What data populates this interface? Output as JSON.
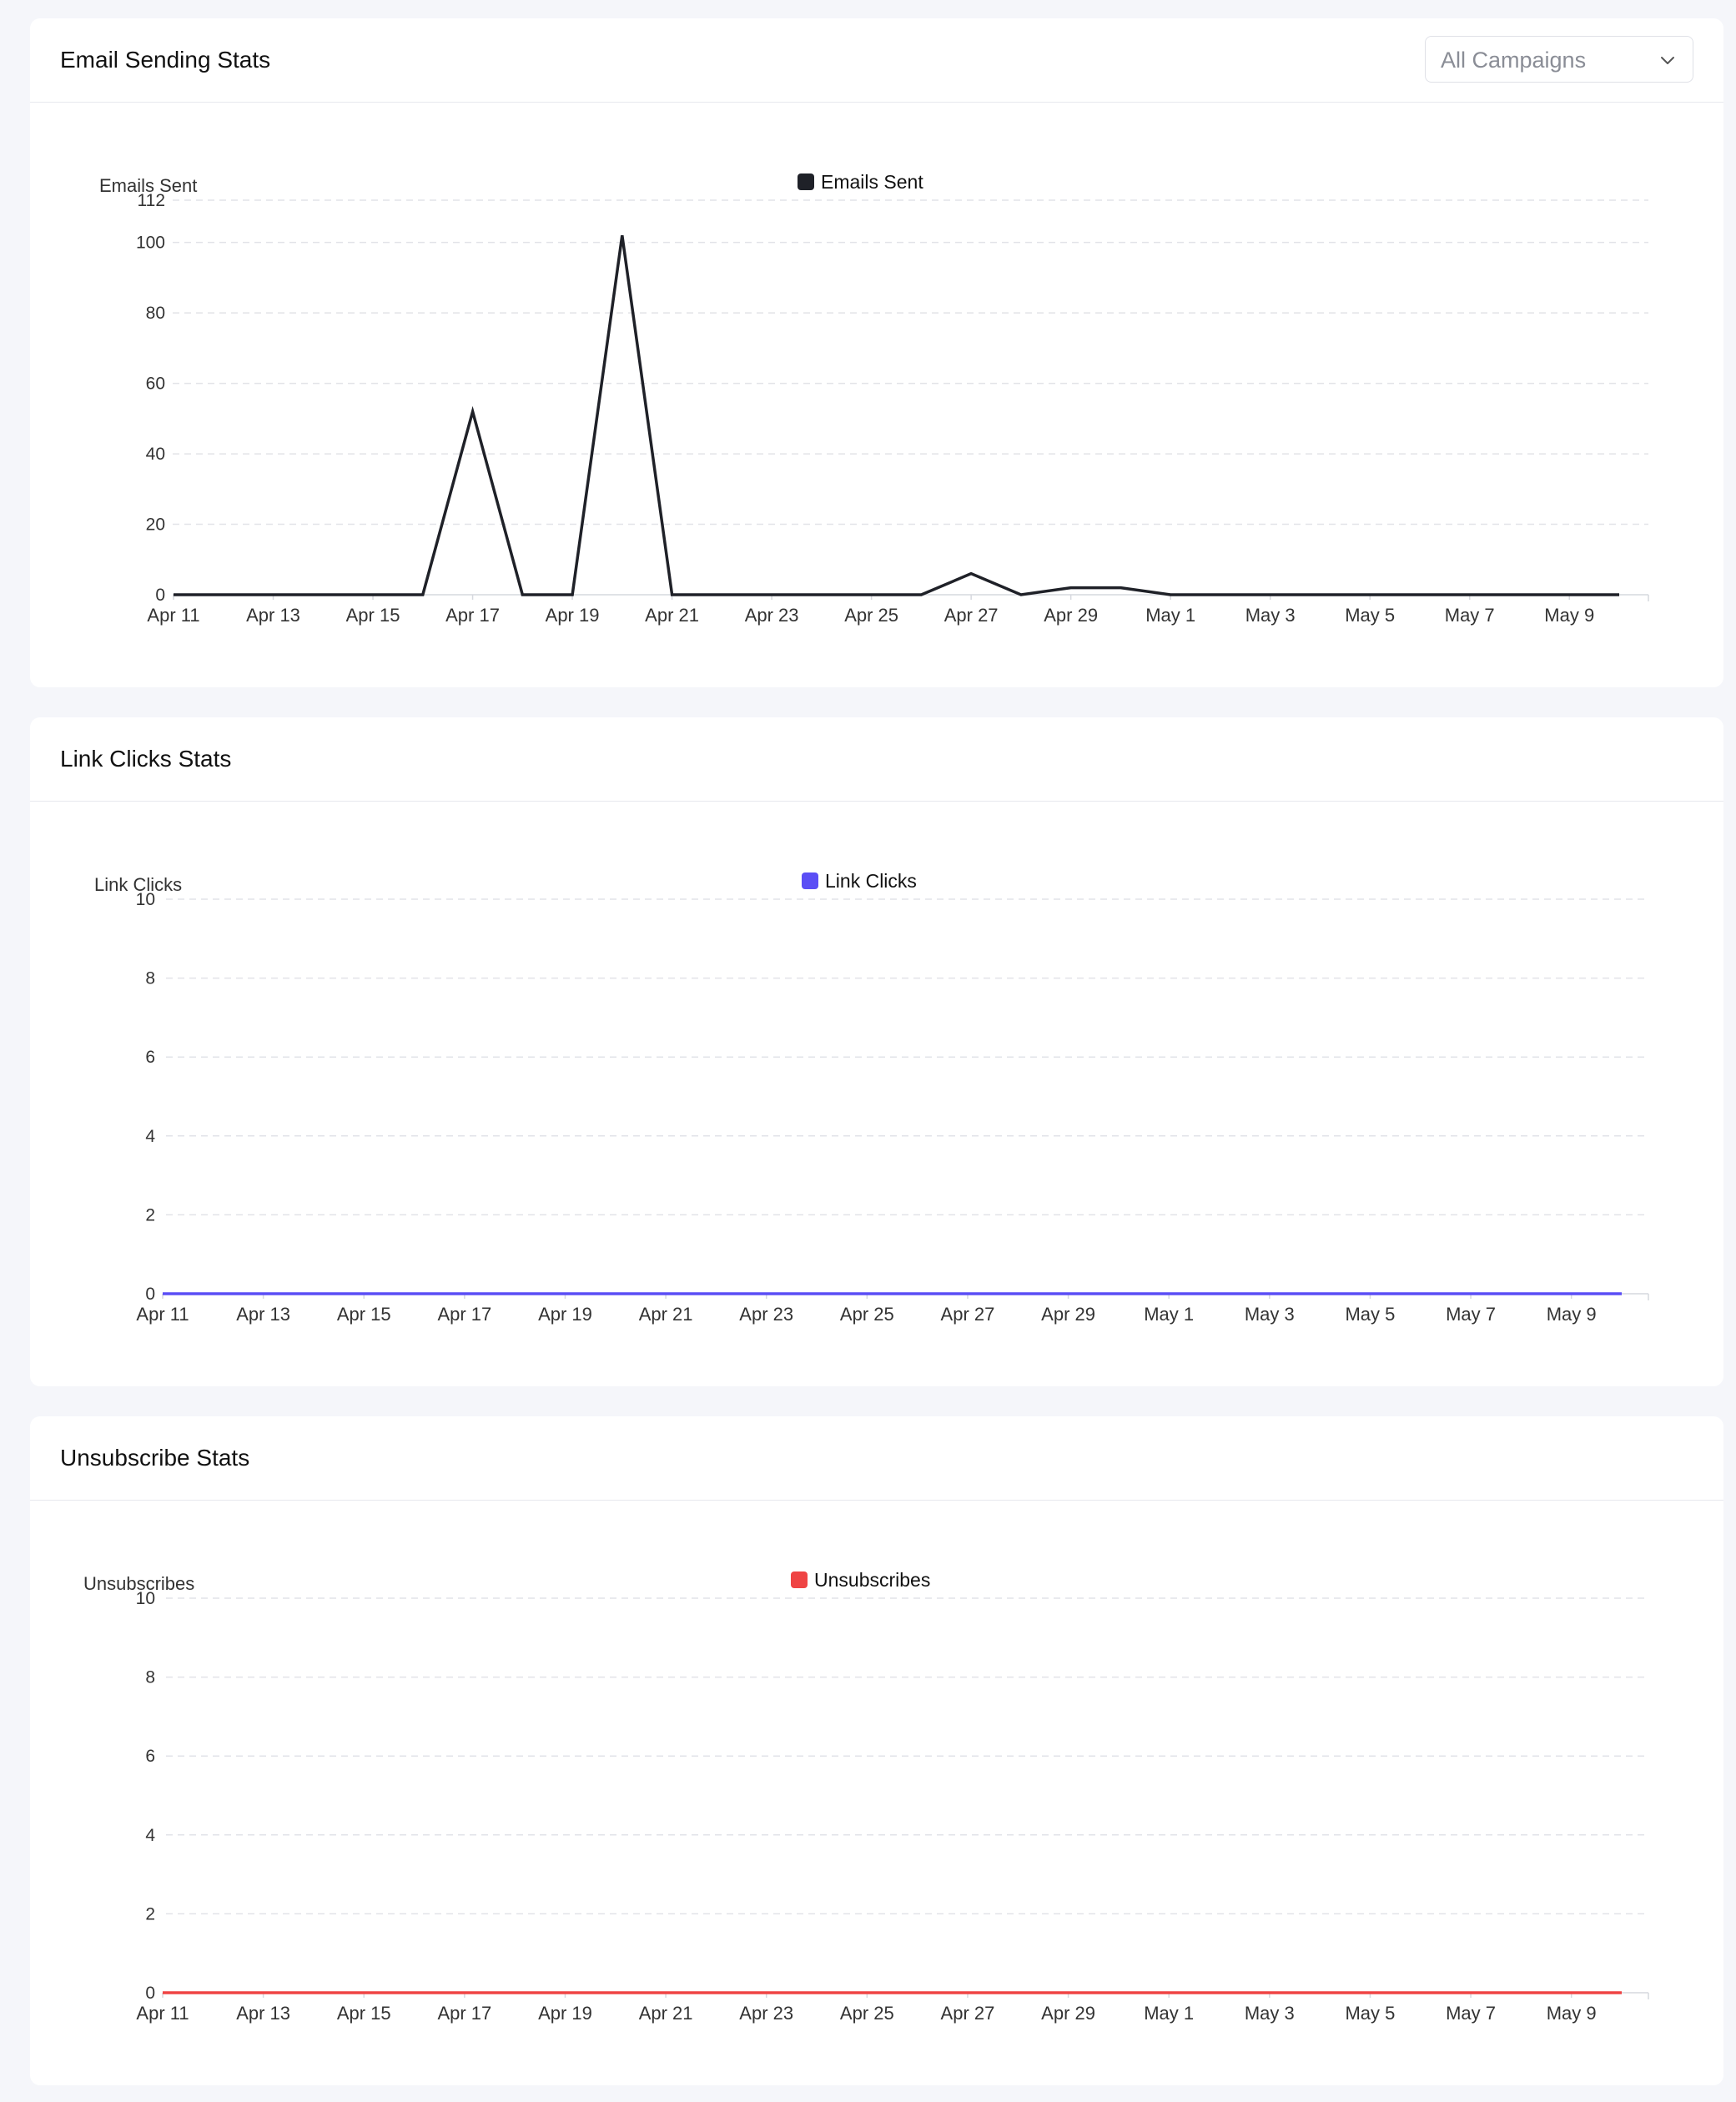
{
  "cards": [
    {
      "title": "Email Sending Stats",
      "dropdown": {
        "value": "All Campaigns",
        "icon": "chevron-down-icon"
      }
    },
    {
      "title": "Link Clicks Stats"
    },
    {
      "title": "Unsubscribe Stats"
    }
  ],
  "chart_data": [
    {
      "type": "line",
      "ylabel": "Emails Sent",
      "xlabel": "",
      "legend": {
        "label": "Emails Sent",
        "placement": "top-center"
      },
      "color": "#1f2128",
      "ylim": [
        0,
        112
      ],
      "yticks": [
        0,
        20,
        40,
        60,
        80,
        100,
        112
      ],
      "grid": true,
      "x": [
        "Apr 11",
        "Apr 12",
        "Apr 13",
        "Apr 14",
        "Apr 15",
        "Apr 16",
        "Apr 17",
        "Apr 18",
        "Apr 19",
        "Apr 20",
        "Apr 21",
        "Apr 22",
        "Apr 23",
        "Apr 24",
        "Apr 25",
        "Apr 26",
        "Apr 27",
        "Apr 28",
        "Apr 29",
        "Apr 30",
        "May 1",
        "May 2",
        "May 3",
        "May 4",
        "May 5",
        "May 6",
        "May 7",
        "May 8",
        "May 9",
        "May 10"
      ],
      "x_tick_labels": [
        "Apr 11",
        "Apr 13",
        "Apr 15",
        "Apr 17",
        "Apr 19",
        "Apr 21",
        "Apr 23",
        "Apr 25",
        "Apr 27",
        "Apr 29",
        "May 1",
        "May 3",
        "May 5",
        "May 7",
        "May 9"
      ],
      "series": [
        {
          "name": "Emails Sent",
          "values": [
            0,
            0,
            0,
            0,
            0,
            0,
            52,
            0,
            0,
            102,
            0,
            0,
            0,
            0,
            0,
            0,
            6,
            0,
            2,
            2,
            0,
            0,
            0,
            0,
            0,
            0,
            0,
            0,
            0,
            0
          ]
        }
      ]
    },
    {
      "type": "line",
      "ylabel": "Link Clicks",
      "xlabel": "",
      "legend": {
        "label": "Link Clicks",
        "placement": "top-center"
      },
      "color": "#5b4ef5",
      "ylim": [
        0,
        10
      ],
      "yticks": [
        0,
        2,
        4,
        6,
        8,
        10
      ],
      "grid": true,
      "x": [
        "Apr 11",
        "Apr 12",
        "Apr 13",
        "Apr 14",
        "Apr 15",
        "Apr 16",
        "Apr 17",
        "Apr 18",
        "Apr 19",
        "Apr 20",
        "Apr 21",
        "Apr 22",
        "Apr 23",
        "Apr 24",
        "Apr 25",
        "Apr 26",
        "Apr 27",
        "Apr 28",
        "Apr 29",
        "Apr 30",
        "May 1",
        "May 2",
        "May 3",
        "May 4",
        "May 5",
        "May 6",
        "May 7",
        "May 8",
        "May 9",
        "May 10"
      ],
      "x_tick_labels": [
        "Apr 11",
        "Apr 13",
        "Apr 15",
        "Apr 17",
        "Apr 19",
        "Apr 21",
        "Apr 23",
        "Apr 25",
        "Apr 27",
        "Apr 29",
        "May 1",
        "May 3",
        "May 5",
        "May 7",
        "May 9"
      ],
      "series": [
        {
          "name": "Link Clicks",
          "values": [
            0,
            0,
            0,
            0,
            0,
            0,
            0,
            0,
            0,
            0,
            0,
            0,
            0,
            0,
            0,
            0,
            0,
            0,
            0,
            0,
            0,
            0,
            0,
            0,
            0,
            0,
            0,
            0,
            0,
            0
          ]
        }
      ]
    },
    {
      "type": "line",
      "ylabel": "Unsubscribes",
      "xlabel": "",
      "legend": {
        "label": "Unsubscribes",
        "placement": "top-center"
      },
      "color": "#ef4444",
      "ylim": [
        0,
        10
      ],
      "yticks": [
        0,
        2,
        4,
        6,
        8,
        10
      ],
      "grid": true,
      "x": [
        "Apr 11",
        "Apr 12",
        "Apr 13",
        "Apr 14",
        "Apr 15",
        "Apr 16",
        "Apr 17",
        "Apr 18",
        "Apr 19",
        "Apr 20",
        "Apr 21",
        "Apr 22",
        "Apr 23",
        "Apr 24",
        "Apr 25",
        "Apr 26",
        "Apr 27",
        "Apr 28",
        "Apr 29",
        "Apr 30",
        "May 1",
        "May 2",
        "May 3",
        "May 4",
        "May 5",
        "May 6",
        "May 7",
        "May 8",
        "May 9",
        "May 10"
      ],
      "x_tick_labels": [
        "Apr 11",
        "Apr 13",
        "Apr 15",
        "Apr 17",
        "Apr 19",
        "Apr 21",
        "Apr 23",
        "Apr 25",
        "Apr 27",
        "Apr 29",
        "May 1",
        "May 3",
        "May 5",
        "May 7",
        "May 9"
      ],
      "series": [
        {
          "name": "Unsubscribes",
          "values": [
            0,
            0,
            0,
            0,
            0,
            0,
            0,
            0,
            0,
            0,
            0,
            0,
            0,
            0,
            0,
            0,
            0,
            0,
            0,
            0,
            0,
            0,
            0,
            0,
            0,
            0,
            0,
            0,
            0,
            0
          ]
        }
      ]
    }
  ]
}
